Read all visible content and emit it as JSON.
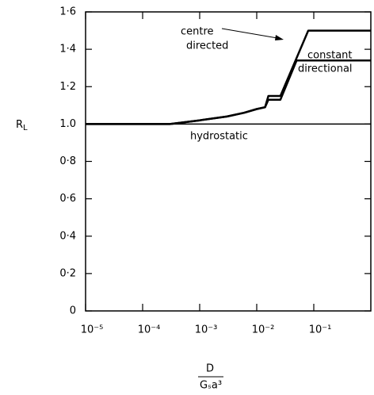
{
  "chart_data": {
    "type": "line",
    "y_label": {
      "main": "R",
      "subscript": "L"
    },
    "x_label": {
      "numerator": "D",
      "denominator": "Gₛa³"
    },
    "log_x": true,
    "xlim": [
      1e-05,
      1
    ],
    "xticks": [
      {
        "value": 1e-05,
        "label": "10⁻⁵"
      },
      {
        "value": 0.0001,
        "label": "10⁻⁴"
      },
      {
        "value": 0.001,
        "label": "10⁻³"
      },
      {
        "value": 0.01,
        "label": "10⁻²"
      },
      {
        "value": 0.1,
        "label": "10⁻¹"
      }
    ],
    "ylim": [
      0,
      1.6
    ],
    "yticks": [
      0,
      {
        "value": 0.2,
        "label": "0·2"
      },
      {
        "value": 0.4,
        "label": "0·4"
      },
      {
        "value": 0.6,
        "label": "0·6"
      },
      {
        "value": 0.8,
        "label": "0·8"
      },
      {
        "value": 1.0,
        "label": "1.0"
      },
      {
        "value": 1.2,
        "label": "1·2"
      },
      {
        "value": 1.4,
        "label": "1·4"
      },
      {
        "value": 1.6,
        "label": "1·6"
      }
    ],
    "series": [
      {
        "name": "hydrostatic",
        "color": "#000000",
        "x": [
          1e-05,
          1
        ],
        "values": [
          1.0,
          1.0
        ]
      },
      {
        "name": "centre directed",
        "color": "#000000",
        "x": [
          1e-05,
          0.0003,
          0.001,
          0.003,
          0.006,
          0.01,
          0.014,
          0.016,
          0.026,
          0.08,
          1
        ],
        "values": [
          1.0,
          1.0,
          1.02,
          1.04,
          1.06,
          1.08,
          1.09,
          1.15,
          1.15,
          1.5,
          1.5
        ]
      },
      {
        "name": "constant directional",
        "color": "#000000",
        "x": [
          1e-05,
          0.0003,
          0.001,
          0.003,
          0.006,
          0.01,
          0.014,
          0.016,
          0.026,
          0.05,
          1
        ],
        "values": [
          1.0,
          1.0,
          1.02,
          1.04,
          1.06,
          1.08,
          1.09,
          1.13,
          1.13,
          1.34,
          1.34
        ]
      }
    ],
    "annotations": [
      "centre",
      "directed",
      "constant",
      "directional",
      "hydrostatic"
    ]
  }
}
